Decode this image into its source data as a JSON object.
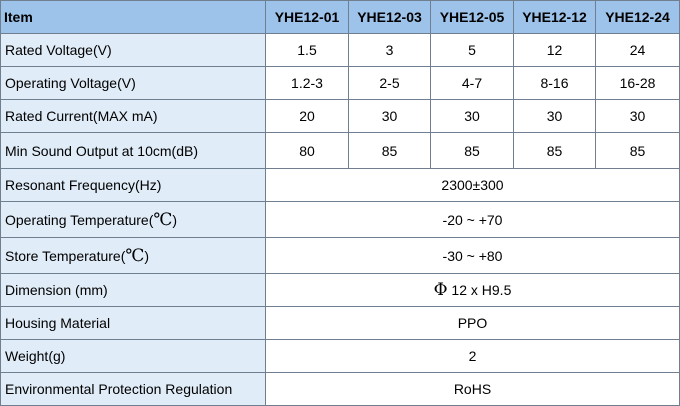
{
  "table": {
    "header": {
      "item": "Item",
      "models": [
        "YHE12-01",
        "YHE12-03",
        "YHE12-05",
        "YHE12-12",
        "YHE12-24"
      ]
    },
    "rows": [
      {
        "label": "Rated Voltage(V)",
        "values": [
          "1.5",
          "3",
          "5",
          "12",
          "24"
        ]
      },
      {
        "label": "Operating Voltage(V)",
        "values": [
          "1.2-3",
          "2-5",
          "4-7",
          "8-16",
          "16-28"
        ]
      },
      {
        "label": "Rated Current(MAX mA)",
        "values": [
          "20",
          "30",
          "30",
          "30",
          "30"
        ]
      },
      {
        "label": "Min Sound Output at 10cm(dB)",
        "values": [
          "80",
          "85",
          "85",
          "85",
          "85"
        ]
      },
      {
        "label": "Resonant Frequency(Hz)",
        "value": "2300±300"
      },
      {
        "label": "Operating Temperature(",
        "unit": "℃",
        "close": ")",
        "value": "-20 ~ +70"
      },
      {
        "label": "Store Temperature(",
        "unit": "℃",
        "close": ")",
        "value": "-30 ~ +80"
      },
      {
        "label": "Dimension (mm)",
        "symbol": "Φ",
        "value": " 12 x H9.5"
      },
      {
        "label": "Housing Material",
        "value": "PPO"
      },
      {
        "label": "Weight(g)",
        "value": "2"
      },
      {
        "label": "Environmental Protection Regulation",
        "value": "RoHS"
      }
    ]
  }
}
